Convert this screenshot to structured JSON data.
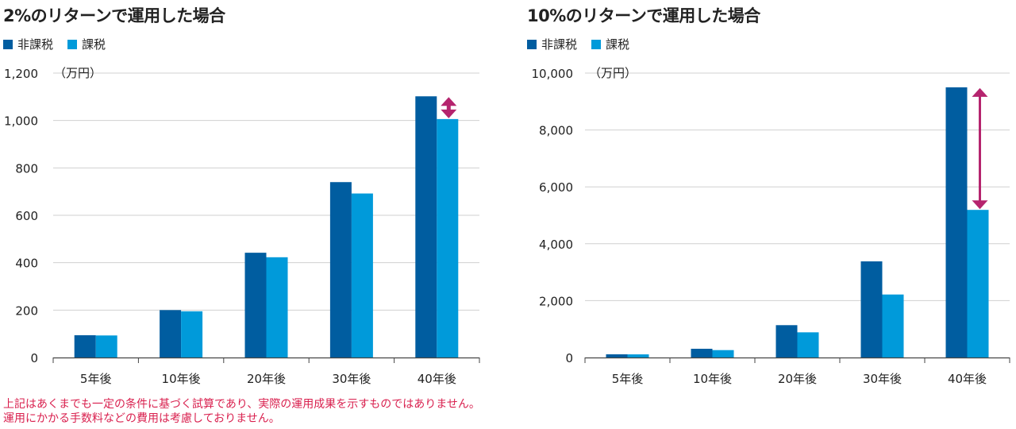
{
  "colors": {
    "non_taxable": "#005da0",
    "taxable": "#009ada",
    "arrow": "#b5246e",
    "grid": "#d0d0d0"
  },
  "chart_data": [
    {
      "type": "bar",
      "title": "2%のリターンで運用した場合",
      "unit_label": "（万円）",
      "categories": [
        "5年後",
        "10年後",
        "20年後",
        "30年後",
        "40年後"
      ],
      "series": [
        {
          "name": "非課税",
          "values": [
            94,
            200,
            442,
            740,
            1102
          ]
        },
        {
          "name": "課税",
          "values": [
            93,
            195,
            423,
            692,
            1006
          ]
        }
      ],
      "ylim": [
        0,
        1200
      ],
      "yticks": [
        0,
        200,
        400,
        600,
        800,
        1000,
        1200
      ],
      "ytick_labels": [
        "0",
        "200",
        "400",
        "600",
        "800",
        "1,000",
        "1,200"
      ],
      "grid": true,
      "legend": "top-left"
    },
    {
      "type": "bar",
      "title": "10%のリターンで運用した場合",
      "unit_label": "（万円）",
      "categories": [
        "5年後",
        "10年後",
        "20年後",
        "30年後",
        "40年後"
      ],
      "series": [
        {
          "name": "非課税",
          "values": [
            112,
            307,
            1137,
            3380,
            9500
          ]
        },
        {
          "name": "課税",
          "values": [
            110,
            260,
            885,
            2215,
            5190
          ]
        }
      ],
      "ylim": [
        0,
        10000
      ],
      "yticks": [
        0,
        2000,
        4000,
        6000,
        8000,
        10000
      ],
      "ytick_labels": [
        "0",
        "2,000",
        "4,000",
        "6,000",
        "8,000",
        "10,000"
      ],
      "grid": true,
      "legend": "top-left"
    }
  ],
  "notes": [
    "上記はあくまでも一定の条件に基づく試算であり、実際の運用成果を示すものではありません。",
    "運用にかかる手数料などの費用は考慮しておりません。"
  ]
}
